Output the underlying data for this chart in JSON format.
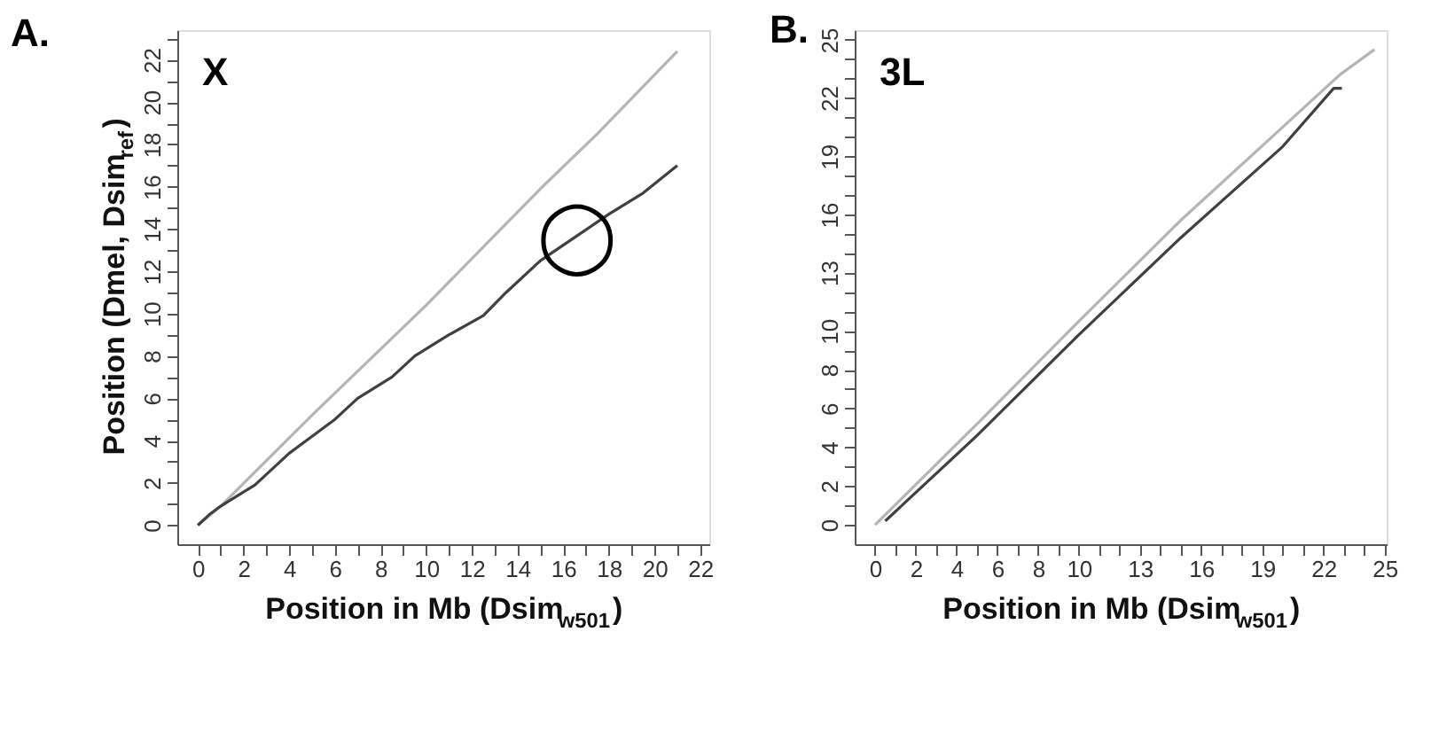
{
  "chart_data": [
    {
      "type": "line",
      "title": "A.",
      "xlabel": "Position in Mb (Dsim$_{w501}$)",
      "ylabel": "Position (Dmel, Dsim$_{ref}$)",
      "xlim": [
        -0.9,
        22.4
      ],
      "ylim": [
        -0.9,
        23.4
      ],
      "xticks": [
        0,
        {
          "value": 1,
          "label": null
        },
        2,
        {
          "value": 3,
          "label": null
        },
        4,
        {
          "value": 5,
          "label": null
        },
        6,
        {
          "value": 7,
          "label": null
        },
        8,
        {
          "value": 9,
          "label": null
        },
        10,
        {
          "value": 11,
          "label": null
        },
        12,
        {
          "value": 13,
          "label": null
        },
        14,
        {
          "value": 15,
          "label": null
        },
        16,
        {
          "value": 17,
          "label": null
        },
        18,
        {
          "value": 19,
          "label": null
        },
        20,
        {
          "value": 21,
          "label": null
        },
        22
      ],
      "yticks": [
        0,
        {
          "value": 1,
          "label": null
        },
        2,
        {
          "value": 3,
          "label": null
        },
        4,
        {
          "value": 5,
          "label": null
        },
        6,
        {
          "value": 7,
          "label": null
        },
        8,
        {
          "value": 9,
          "label": null
        },
        10,
        {
          "value": 11,
          "label": null
        },
        12,
        {
          "value": 13,
          "label": null
        },
        14,
        {
          "value": 15,
          "label": null
        },
        16,
        {
          "value": 17,
          "label": null
        },
        18,
        {
          "value": 19,
          "label": null
        },
        20,
        {
          "value": 21,
          "label": null
        },
        22,
        {
          "value": 23,
          "label": null
        }
      ],
      "grid": false,
      "legend": false,
      "marker": "none",
      "line_style": "solid",
      "series": [
        {
          "color": "#b5b5b5",
          "x": [
            0,
            1,
            5,
            10,
            15,
            17.5,
            21
          ],
          "values": [
            0,
            0.9,
            5.2,
            10.4,
            15.9,
            18.5,
            22.4
          ]
        },
        {
          "color": "#404040",
          "x": [
            0,
            0.5,
            1,
            2.5,
            4,
            6,
            7,
            8.5,
            9.5,
            11,
            12.5,
            13.5,
            15,
            16.5,
            18,
            19.5,
            21
          ],
          "values": [
            0,
            0.5,
            0.9,
            1.9,
            3.4,
            5.0,
            6.0,
            7.0,
            8.0,
            9.0,
            9.9,
            11.0,
            12.5,
            13.6,
            14.7,
            15.7,
            17.0
          ]
        }
      ],
      "annotations": [
        "X",
        {
          "text": "◯",
          "x": 16.6,
          "y": 13.6
        }
      ]
    },
    {
      "type": "line",
      "title": "B.",
      "xlabel": "Position in Mb (Dsim$_{w501}$)",
      "xlim": [
        -1.0,
        25.1
      ],
      "ylim": [
        -1.0,
        25.5
      ],
      "xticks": [
        0,
        {
          "value": 1,
          "label": null
        },
        2,
        {
          "value": 3,
          "label": null
        },
        4,
        {
          "value": 5,
          "label": null
        },
        6,
        {
          "value": 7,
          "label": null
        },
        8,
        {
          "value": 9,
          "label": null
        },
        10,
        {
          "value": 11,
          "label": null
        },
        {
          "value": 12,
          "label": null
        },
        13,
        {
          "value": 14,
          "label": null
        },
        {
          "value": 15,
          "label": null
        },
        16,
        {
          "value": 17,
          "label": null
        },
        {
          "value": 18,
          "label": null
        },
        19,
        {
          "value": 20,
          "label": null
        },
        {
          "value": 21,
          "label": null
        },
        22,
        {
          "value": 23,
          "label": null
        },
        {
          "value": 24,
          "label": null
        },
        25
      ],
      "yticks": [
        0,
        {
          "value": 1,
          "label": null
        },
        2,
        {
          "value": 3,
          "label": null
        },
        4,
        {
          "value": 5,
          "label": null
        },
        6,
        {
          "value": 7,
          "label": null
        },
        8,
        {
          "value": 9,
          "label": null
        },
        10,
        {
          "value": 11,
          "label": null
        },
        {
          "value": 12,
          "label": null
        },
        13,
        {
          "value": 14,
          "label": null
        },
        {
          "value": 15,
          "label": null
        },
        16,
        {
          "value": 17,
          "label": null
        },
        {
          "value": 18,
          "label": null
        },
        19,
        {
          "value": 20,
          "label": null
        },
        {
          "value": 21,
          "label": null
        },
        22,
        {
          "value": 23,
          "label": null
        },
        {
          "value": 24,
          "label": null
        },
        25
      ],
      "grid": false,
      "legend": false,
      "marker": "none",
      "line_style": "solid",
      "series": [
        {
          "color": "#b5b5b5",
          "x": [
            0,
            5,
            10,
            15,
            20,
            22.8,
            24.5
          ],
          "values": [
            0,
            5.2,
            10.5,
            15.7,
            20.5,
            23.2,
            24.5
          ]
        },
        {
          "color": "#404040",
          "x": [
            0.5,
            5,
            10,
            15,
            20,
            22.5,
            22.9
          ],
          "values": [
            0.2,
            4.6,
            9.8,
            14.8,
            19.5,
            22.5,
            22.5
          ]
        }
      ],
      "annotations": [
        "3L"
      ]
    }
  ]
}
